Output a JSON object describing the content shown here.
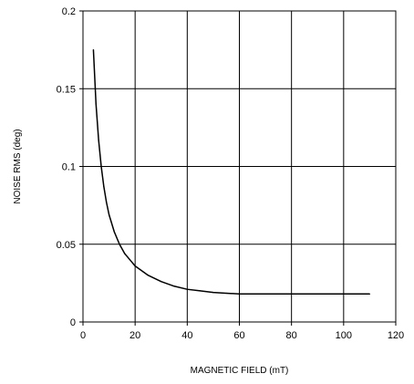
{
  "chart_data": {
    "type": "line",
    "title": "",
    "xlabel": "MAGNETIC FIELD (mT)",
    "ylabel": "NOISE RMS (deg)",
    "xlim": [
      0,
      120
    ],
    "ylim": [
      0,
      0.2
    ],
    "xticks": [
      "0",
      "20",
      "40",
      "60",
      "80",
      "100",
      "120"
    ],
    "yticks": [
      "0",
      "0.05",
      "0.1",
      "0.15",
      "0.2"
    ],
    "grid": true,
    "legend": "none",
    "series": [
      {
        "x": [
          4,
          5,
          6,
          7,
          8,
          9,
          10,
          12,
          14,
          16,
          18,
          20,
          25,
          30,
          35,
          40,
          45,
          50,
          55,
          60,
          70,
          80,
          90,
          100,
          110
        ],
        "y": [
          0.175,
          0.14,
          0.117,
          0.1,
          0.087,
          0.077,
          0.069,
          0.058,
          0.05,
          0.044,
          0.04,
          0.036,
          0.03,
          0.026,
          0.023,
          0.021,
          0.02,
          0.019,
          0.0185,
          0.018,
          0.018,
          0.018,
          0.018,
          0.018,
          0.018
        ]
      }
    ],
    "colors": {
      "line": "#000000",
      "grid": "#000000",
      "axes": "#000000",
      "background": "#ffffff"
    }
  }
}
